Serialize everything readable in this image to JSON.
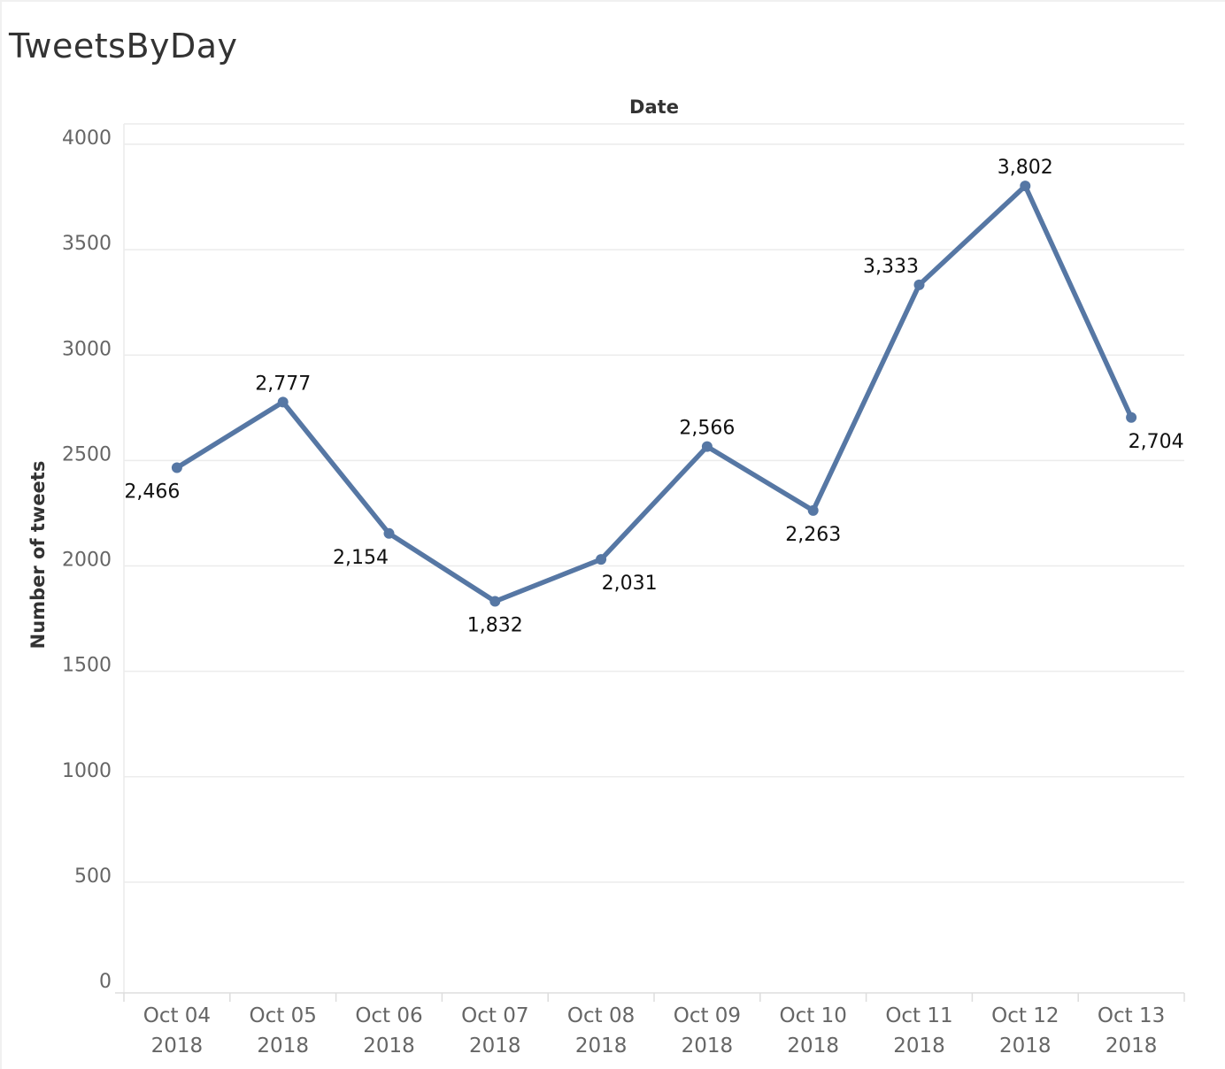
{
  "title": "TweetsByDay",
  "chart_data": {
    "type": "line",
    "title": "TweetsByDay",
    "xlabel": "Date",
    "ylabel": "Number of tweets",
    "ylim": [
      0,
      4000
    ],
    "yticks": [
      "0",
      "500",
      "1000",
      "1500",
      "2000",
      "2500",
      "3000",
      "3500",
      "4000"
    ],
    "categories": [
      {
        "line1": "Oct 04",
        "line2": "2018"
      },
      {
        "line1": "Oct 05",
        "line2": "2018"
      },
      {
        "line1": "Oct 06",
        "line2": "2018"
      },
      {
        "line1": "Oct 07",
        "line2": "2018"
      },
      {
        "line1": "Oct 08",
        "line2": "2018"
      },
      {
        "line1": "Oct 09",
        "line2": "2018"
      },
      {
        "line1": "Oct 10",
        "line2": "2018"
      },
      {
        "line1": "Oct 11",
        "line2": "2018"
      },
      {
        "line1": "Oct 12",
        "line2": "2018"
      },
      {
        "line1": "Oct 13",
        "line2": "2018"
      }
    ],
    "values": [
      2466,
      2777,
      2154,
      1832,
      2031,
      2566,
      2263,
      3333,
      3802,
      2704
    ],
    "value_labels": [
      "2,466",
      "2,777",
      "2,154",
      "1,832",
      "2,031",
      "2,566",
      "2,263",
      "3,333",
      "3,802",
      "2,704"
    ],
    "grid": true,
    "line_color": "#5677a4"
  }
}
